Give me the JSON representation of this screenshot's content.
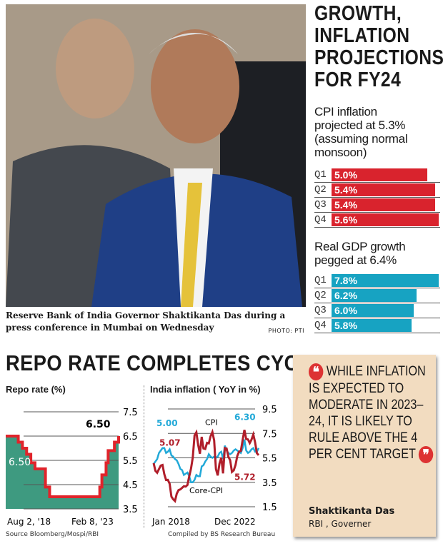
{
  "photo": {
    "caption": "Reserve Bank of India Governor Shaktikanta Das during a press conference in Mumbai on Wednesday",
    "credit": "PHOTO: PTI"
  },
  "projections": {
    "headline": [
      "GROWTH,",
      "INFLATION",
      "PROJECTIONS",
      "FOR FY24"
    ],
    "cpi_title": [
      "CPI inflation",
      "projected at 5.3%",
      "(assuming normal",
      "monsoon)"
    ],
    "gdp_title": [
      "Real GDP growth",
      "pegged at 6.4%"
    ],
    "colors": {
      "cpi": "#d9232d",
      "gdp": "#17a3c2"
    }
  },
  "bottom": {
    "heading": "REPO RATE COMPLETES CYCLE",
    "source": "Source Bloomberg/Mospi/RBI",
    "compiled": "Compiled by BS Research Bureau"
  },
  "quote": {
    "text": "WHILE INFLATION IS EXPECTED TO MODERATE IN 2023–24, IT IS LIKELY TO RULE ABOVE THE 4 PER CENT TARGET",
    "name": "Shaktikanta Das",
    "role": "RBI , Governer",
    "open_mark": "❝",
    "close_mark": "❞"
  },
  "chart_data": [
    {
      "type": "bar",
      "orientation": "horizontal",
      "title": "CPI inflation projected at 5.3% (assuming normal monsoon)",
      "categories": [
        "Q1",
        "Q2",
        "Q3",
        "Q4"
      ],
      "values": [
        5.0,
        5.4,
        5.4,
        5.6
      ],
      "labels": [
        "5.0%",
        "5.4%",
        "5.4%",
        "5.6%"
      ],
      "color": "#d9232d"
    },
    {
      "type": "bar",
      "orientation": "horizontal",
      "title": "Real GDP growth pegged at 6.4%",
      "categories": [
        "Q1",
        "Q2",
        "Q3",
        "Q4"
      ],
      "values": [
        7.8,
        6.2,
        6.0,
        5.8
      ],
      "labels": [
        "7.8%",
        "6.2%",
        "6.0%",
        "5.8%"
      ],
      "color": "#17a3c2"
    },
    {
      "type": "area",
      "title": "Repo rate (%)",
      "x_labels": [
        "Aug 2, '18",
        "Feb 8, '23"
      ],
      "ylim": [
        3.5,
        7.5
      ],
      "yticks": [
        "7.5",
        "6.5",
        "5.5",
        "4.5",
        "3.5"
      ],
      "grid": true,
      "series": [
        {
          "x": [
            "2018-08",
            "2019-02",
            "2019-04",
            "2019-06",
            "2019-08",
            "2019-10",
            "2020-03",
            "2020-05",
            "2022-05",
            "2022-06",
            "2022-08",
            "2022-09",
            "2022-12",
            "2023-02"
          ],
          "values": [
            6.5,
            6.25,
            6.0,
            5.75,
            5.4,
            5.15,
            4.4,
            4.0,
            4.4,
            4.9,
            5.4,
            5.9,
            6.25,
            6.5
          ],
          "end": "2023-02"
        }
      ],
      "annotations": [
        "6.50",
        "6.50"
      ],
      "colors": {
        "fill": "#3e9a80",
        "line": "#e0242b"
      }
    },
    {
      "type": "line",
      "title": "India inflation ( YoY in %)",
      "x_labels": [
        "Jan 2018",
        "Dec 2022"
      ],
      "ylim": [
        1.5,
        9.5
      ],
      "yticks": [
        "9.5",
        "7.5",
        "5.5",
        "3.5",
        "1.5"
      ],
      "grid": true,
      "start": "2018-01",
      "end": "2022-12",
      "series": [
        {
          "name": "CPI",
          "color": "#b01e2a",
          "values": [
            5.07,
            4.44,
            4.28,
            4.58,
            4.87,
            4.92,
            4.17,
            3.69,
            3.7,
            3.38,
            2.33,
            2.11,
            1.97,
            2.57,
            2.86,
            2.92,
            3.05,
            3.18,
            3.15,
            3.28,
            3.99,
            4.62,
            5.54,
            7.35,
            7.59,
            6.58,
            5.84,
            7.22,
            6.27,
            6.23,
            6.73,
            6.69,
            7.27,
            7.61,
            6.93,
            4.59,
            4.06,
            5.03,
            5.52,
            4.23,
            6.3,
            6.26,
            5.59,
            5.3,
            4.35,
            4.48,
            4.91,
            5.66,
            6.01,
            6.07,
            6.95,
            7.79,
            7.04,
            7.01,
            6.71,
            7.0,
            7.41,
            6.77,
            5.88,
            5.72
          ]
        },
        {
          "name": "Core-CPI",
          "color": "#22a9d8",
          "values": [
            5.0,
            5.2,
            5.4,
            5.9,
            6.1,
            6.3,
            6.3,
            5.9,
            6.0,
            6.2,
            5.7,
            5.6,
            5.4,
            5.3,
            5.0,
            4.6,
            4.5,
            4.1,
            4.2,
            4.3,
            4.0,
            3.5,
            3.5,
            3.7,
            4.1,
            4.0,
            4.0,
            4.8,
            4.9,
            5.2,
            5.4,
            5.8,
            5.6,
            5.5,
            5.6,
            5.5,
            5.6,
            5.9,
            6.0,
            5.4,
            6.5,
            6.1,
            5.9,
            5.8,
            5.9,
            6.1,
            6.2,
            6.1,
            6.0,
            5.9,
            6.3,
            7.0,
            6.1,
            5.9,
            6.0,
            6.2,
            6.3,
            6.0,
            6.0,
            6.3
          ]
        }
      ],
      "annotations": {
        "cpi_start": "5.07",
        "core_start": "5.00",
        "cpi_end": "5.72",
        "core_end": "6.30"
      }
    }
  ]
}
